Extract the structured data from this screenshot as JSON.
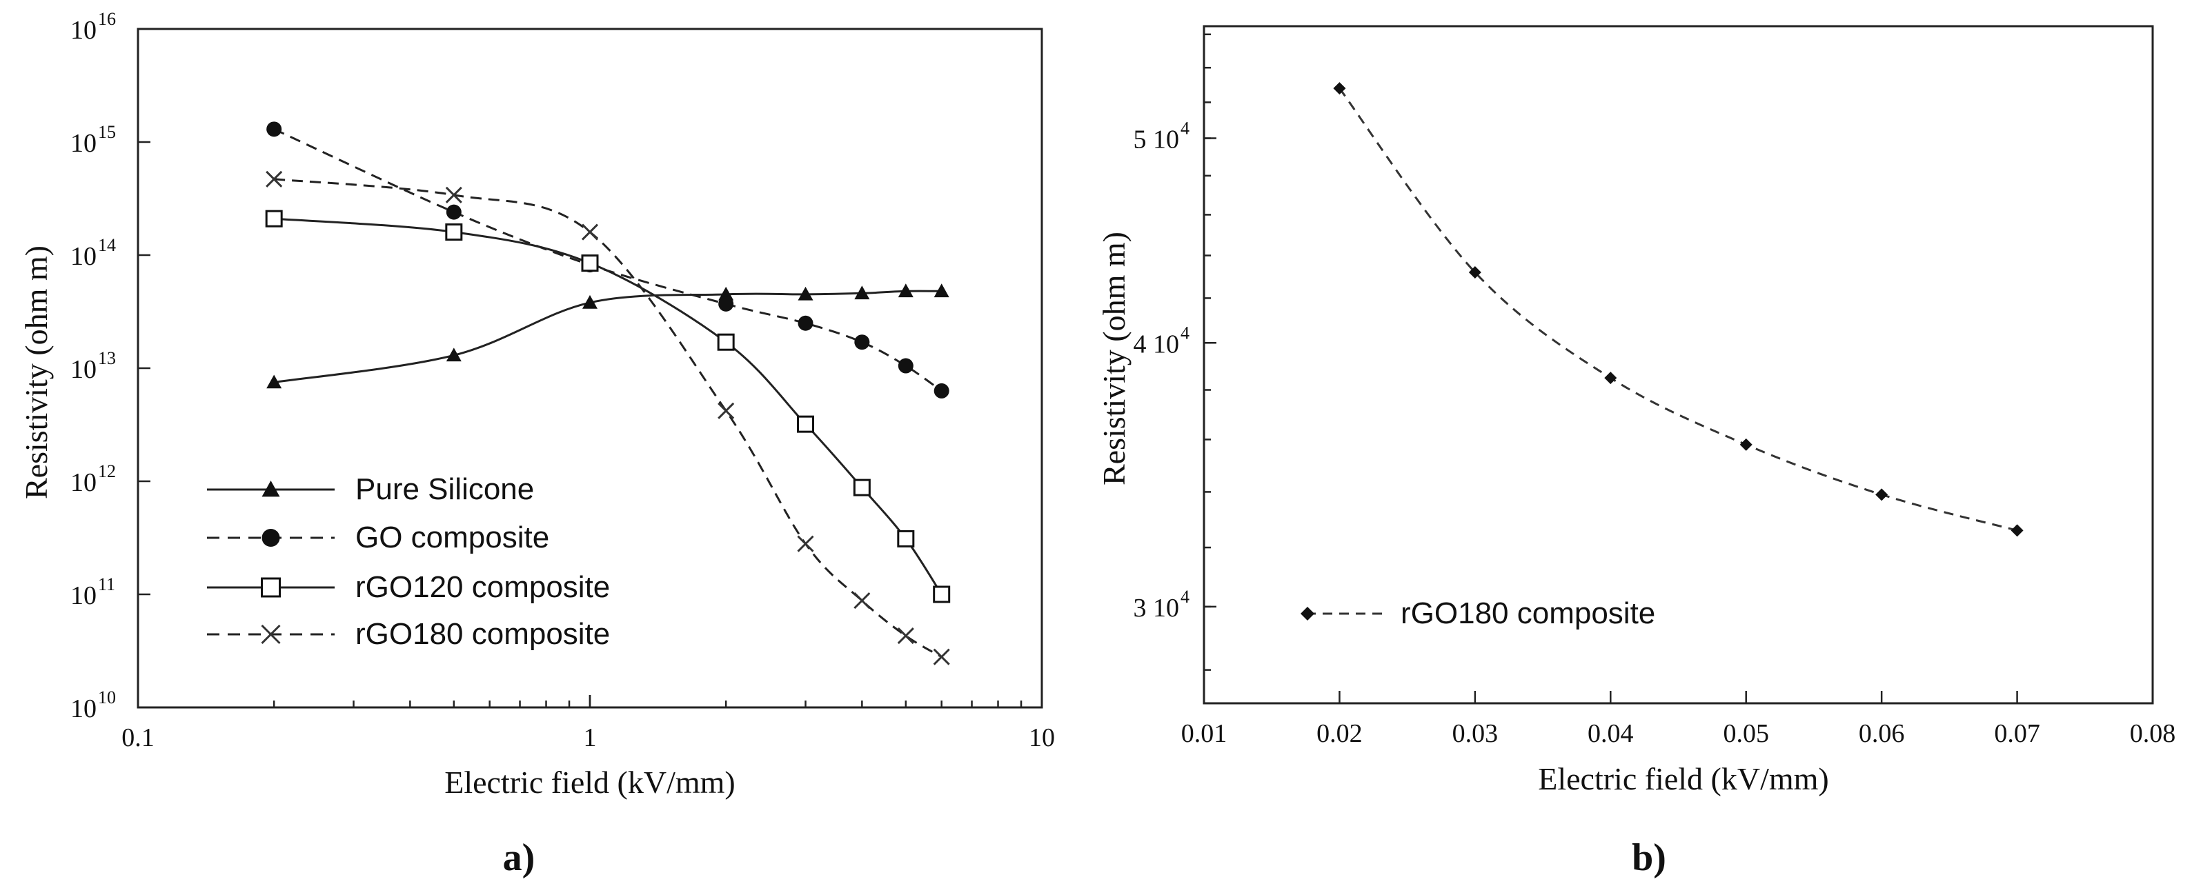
{
  "chart_data": [
    {
      "panel_label": "a)",
      "type": "line",
      "xscale": "log",
      "yscale": "log",
      "xlabel": "Electric field (kV/mm)",
      "ylabel": "Resistivity (ohm m)",
      "xlim": [
        0.1,
        10
      ],
      "ylim_exp": [
        10,
        16
      ],
      "xticks": [
        0.1,
        1,
        10
      ],
      "xtick_labels": [
        "0.1",
        "1",
        "10"
      ],
      "ytick_exps": [
        10,
        11,
        12,
        13,
        14,
        15,
        16
      ],
      "ytick_base": "10",
      "legend_position": "bottom-left",
      "series": [
        {
          "name": "Pure Silicone",
          "marker": "triangle",
          "line": "solid",
          "x": [
            0.2,
            0.5,
            1,
            2,
            3,
            4,
            5,
            6
          ],
          "y": [
            7500000000000.0,
            13000000000000.0,
            38000000000000.0,
            45000000000000.0,
            45000000000000.0,
            46000000000000.0,
            48000000000000.0,
            48000000000000.0
          ]
        },
        {
          "name": "GO composite",
          "marker": "circle",
          "line": "dashed",
          "x": [
            0.2,
            0.5,
            1,
            2,
            3,
            4,
            5,
            6
          ],
          "y": [
            1300000000000000.0,
            240000000000000.0,
            82000000000000.0,
            37000000000000.0,
            25000000000000.0,
            17000000000000.0,
            10500000000000.0,
            6300000000000.0
          ]
        },
        {
          "name": "rGO120 composite",
          "marker": "square",
          "line": "solid",
          "x": [
            0.2,
            0.5,
            1,
            2,
            3,
            4,
            5,
            6
          ],
          "y": [
            210000000000000.0,
            160000000000000.0,
            85000000000000.0,
            17000000000000.0,
            3200000000000.0,
            880000000000.0,
            310000000000.0,
            100000000000.0
          ]
        },
        {
          "name": "rGO180 composite",
          "marker": "cross",
          "line": "dashed",
          "x": [
            0.2,
            0.5,
            1,
            2,
            3,
            4,
            5,
            6
          ],
          "y": [
            470000000000000.0,
            340000000000000.0,
            160000000000000.0,
            4200000000000.0,
            280000000000.0,
            88000000000.0,
            43000000000.0,
            28000000000.0
          ]
        }
      ]
    },
    {
      "panel_label": "b)",
      "type": "line",
      "xscale": "linear",
      "yscale": "log",
      "xlabel": "Electric field (kV/mm)",
      "ylabel": "Resistivity (ohm m)",
      "xlim": [
        0.01,
        0.08
      ],
      "xticks": [
        0.01,
        0.02,
        0.03,
        0.04,
        0.05,
        0.06,
        0.07,
        0.08
      ],
      "xtick_labels": [
        "0.01",
        "0.02",
        "0.03",
        "0.04",
        "0.05",
        "0.06",
        "0.07",
        "0.08"
      ],
      "ylim": [
        27000,
        56500
      ],
      "yticks": [
        30000,
        40000,
        50000
      ],
      "ytick_mantissas": [
        "3",
        "4",
        "5"
      ],
      "ytick_base": "10",
      "ytick_exp": "4",
      "legend_position": "bottom-left",
      "series": [
        {
          "name": "rGO180 composite",
          "marker": "diamond",
          "line": "dashed",
          "x": [
            0.02,
            0.03,
            0.04,
            0.05,
            0.06,
            0.07
          ],
          "y": [
            52800,
            43200,
            38500,
            35800,
            33900,
            32600
          ]
        }
      ]
    }
  ]
}
